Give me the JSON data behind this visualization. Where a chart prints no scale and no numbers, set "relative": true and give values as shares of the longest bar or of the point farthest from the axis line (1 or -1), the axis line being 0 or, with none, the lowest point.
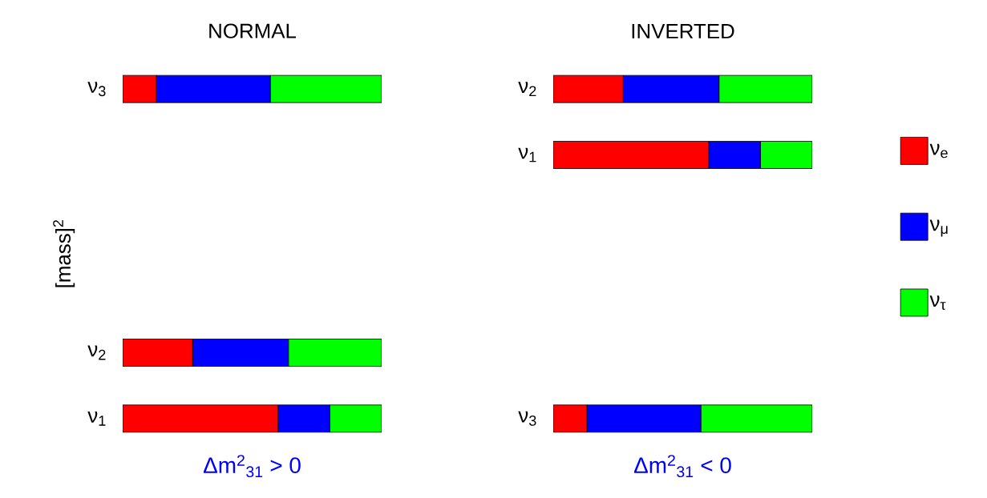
{
  "chart_data": [
    {
      "type": "bar",
      "orientation": "horizontal",
      "stacked": true,
      "relative": true,
      "title": "NORMAL",
      "xlabel": "Δm$^{2}$$_{31}$ > 0",
      "ylabel": "[mass]$^{2}$",
      "categories": [
        "ν$_{3}$",
        null,
        null,
        null,
        "ν$_{2}$",
        "ν$_{1}$"
      ],
      "series": [
        {
          "color": "#ff0000",
          "values": [
            0.13,
            null,
            null,
            null,
            0.27,
            0.6
          ]
        },
        {
          "color": "#0000ff",
          "values": [
            0.44,
            null,
            null,
            null,
            0.37,
            0.2
          ]
        },
        {
          "color": "#00ff00",
          "values": [
            0.43,
            null,
            null,
            null,
            0.36,
            0.2
          ]
        }
      ]
    },
    {
      "type": "bar",
      "orientation": "horizontal",
      "stacked": true,
      "relative": true,
      "title": "INVERTED",
      "xlabel": "Δm$^{2}$$_{31}$ < 0",
      "legend": "right",
      "categories": [
        "ν$_{2}$",
        "ν$_{1}$",
        null,
        null,
        null,
        "ν$_{3}$"
      ],
      "series": [
        {
          "name": "ν$_{e}$",
          "color": "#ff0000",
          "values": [
            0.27,
            0.6,
            null,
            null,
            null,
            0.13
          ]
        },
        {
          "name": "ν$_{μ}$",
          "color": "#0000ff",
          "values": [
            0.37,
            0.2,
            null,
            null,
            null,
            0.44
          ]
        },
        {
          "name": "ν$_{τ}$",
          "color": "#00ff00",
          "values": [
            0.36,
            0.2,
            null,
            null,
            null,
            0.43
          ]
        }
      ]
    }
  ]
}
